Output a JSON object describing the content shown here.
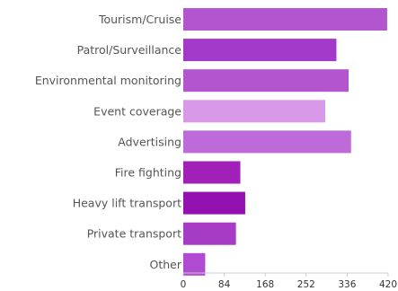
{
  "chart_data": {
    "type": "bar",
    "orientation": "horizontal",
    "title": "",
    "xlabel": "",
    "ylabel": "",
    "categories": [
      "Tourism/Cruise",
      "Patrol/Surveillance",
      "Environmental monitoring",
      "Event coverage",
      "Advertising",
      "Fire fighting",
      "Heavy lift transport",
      "Private transport",
      "Other"
    ],
    "values": [
      418,
      314,
      339,
      291,
      344,
      117,
      127,
      108,
      45
    ],
    "colors": [
      "#b455d0",
      "#a239c8",
      "#b455d0",
      "#d89ae8",
      "#be6ad8",
      "#a020b8",
      "#9510b0",
      "#a63cc6",
      "#b04ad0"
    ],
    "xlim": [
      0,
      420
    ],
    "xticks": [
      0,
      84,
      168,
      252,
      336,
      420
    ],
    "grid": false,
    "legend": "none"
  }
}
